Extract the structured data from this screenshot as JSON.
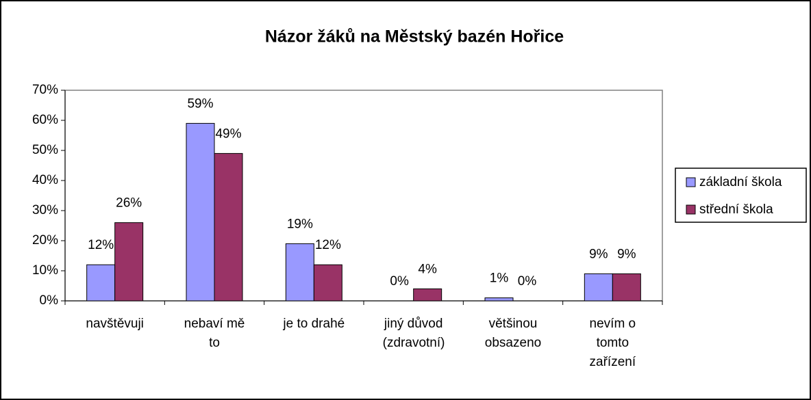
{
  "chart_data": {
    "type": "bar",
    "title": "Názor žáků na Městský bazén Hořice",
    "categories": [
      "navštěvuji",
      "nebaví mě to",
      "je to drahé",
      "jiný důvod (zdravotní)",
      "většinou obsazeno",
      "nevím o tomto zařízení"
    ],
    "series": [
      {
        "name": "základní škola",
        "color": "#9999ff",
        "values": [
          12,
          59,
          19,
          0,
          1,
          9
        ],
        "value_labels": [
          "12%",
          "59%",
          "19%",
          "0%",
          "1%",
          "9%"
        ]
      },
      {
        "name": "střední škola",
        "color": "#993366",
        "values": [
          26,
          49,
          12,
          4,
          0,
          9
        ],
        "value_labels": [
          "26%",
          "49%",
          "12%",
          "4%",
          "0%",
          "9%"
        ]
      }
    ],
    "ylim": [
      0,
      70
    ],
    "yticks": [
      {
        "value": 0,
        "label": "0%"
      },
      {
        "value": 10,
        "label": "10%"
      },
      {
        "value": 20,
        "label": "20%"
      },
      {
        "value": 30,
        "label": "30%"
      },
      {
        "value": 40,
        "label": "40%"
      },
      {
        "value": 50,
        "label": "50%"
      },
      {
        "value": 60,
        "label": "60%"
      },
      {
        "value": 70,
        "label": "70%"
      }
    ],
    "legend": "right"
  }
}
